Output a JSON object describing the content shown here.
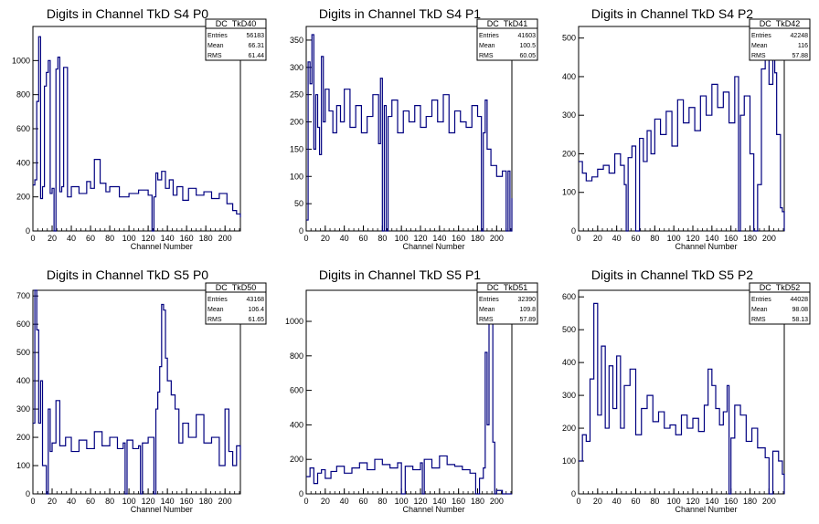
{
  "colors": {
    "line": "#000080",
    "axis": "#000000",
    "background": "#ffffff"
  },
  "chart_data": [
    {
      "type": "line",
      "title": "Digits in Channel TkD S4 P0",
      "xlabel": "Channel Number",
      "xlim": [
        0,
        216
      ],
      "ylim": [
        0,
        1200
      ],
      "xticks": [
        0,
        20,
        40,
        60,
        80,
        100,
        120,
        140,
        160,
        180,
        200
      ],
      "yticks": [
        0,
        200,
        400,
        600,
        800,
        1000
      ],
      "stats": {
        "name": "DC_TkD40",
        "entries_label": "Entries",
        "entries": "56183",
        "mean_label": "Mean",
        "mean": "66.31",
        "rms_label": "RMS",
        "rms": "61.44"
      },
      "series": [
        {
          "x": [
            0,
            2,
            4,
            6,
            8,
            10,
            12,
            14,
            16,
            18,
            20,
            22,
            24,
            26,
            28,
            30,
            32,
            36,
            40,
            48,
            56,
            60,
            64,
            70,
            76,
            80,
            90,
            100,
            110,
            120,
            124,
            126,
            128,
            130,
            134,
            138,
            142,
            146,
            150,
            156,
            162,
            170,
            178,
            186,
            194,
            202,
            208,
            212,
            216
          ],
          "values": [
            270,
            300,
            760,
            1140,
            190,
            260,
            850,
            930,
            1000,
            220,
            250,
            0,
            950,
            1020,
            230,
            260,
            960,
            200,
            260,
            220,
            290,
            250,
            420,
            280,
            230,
            260,
            200,
            220,
            240,
            210,
            0,
            200,
            340,
            300,
            350,
            250,
            300,
            210,
            260,
            180,
            250,
            210,
            230,
            190,
            220,
            160,
            120,
            100,
            80
          ]
        }
      ]
    },
    {
      "type": "line",
      "title": "Digits in Channel TkD S4 P1",
      "xlabel": "Channel Number",
      "xlim": [
        0,
        216
      ],
      "ylim": [
        0,
        375
      ],
      "xticks": [
        0,
        20,
        40,
        60,
        80,
        100,
        120,
        140,
        160,
        180,
        200
      ],
      "yticks": [
        0,
        50,
        100,
        150,
        200,
        250,
        300,
        350
      ],
      "stats": {
        "name": "DC_TkD41",
        "entries_label": "Entries",
        "entries": "41603",
        "mean_label": "Mean",
        "mean": "100.5",
        "rms_label": "RMS",
        "rms": "60.05"
      },
      "series": [
        {
          "x": [
            0,
            2,
            4,
            6,
            8,
            10,
            12,
            14,
            16,
            18,
            20,
            24,
            28,
            32,
            36,
            40,
            46,
            52,
            58,
            64,
            70,
            76,
            78,
            80,
            82,
            84,
            86,
            90,
            96,
            102,
            108,
            114,
            120,
            126,
            132,
            138,
            144,
            150,
            156,
            162,
            168,
            174,
            180,
            184,
            186,
            188,
            190,
            194,
            200,
            206,
            210,
            212,
            214,
            216
          ],
          "values": [
            20,
            310,
            270,
            360,
            150,
            250,
            190,
            140,
            320,
            200,
            260,
            220,
            180,
            230,
            200,
            260,
            190,
            230,
            180,
            210,
            250,
            160,
            280,
            0,
            230,
            0,
            210,
            240,
            180,
            220,
            200,
            230,
            190,
            210,
            240,
            200,
            250,
            180,
            220,
            200,
            190,
            230,
            210,
            0,
            180,
            240,
            150,
            120,
            100,
            110,
            0,
            110,
            0,
            60
          ]
        }
      ]
    },
    {
      "type": "line",
      "title": "Digits in Channel TkD S4 P2",
      "xlabel": "Channel Number",
      "xlim": [
        0,
        216
      ],
      "ylim": [
        0,
        530
      ],
      "xticks": [
        0,
        20,
        40,
        60,
        80,
        100,
        120,
        140,
        160,
        180,
        200
      ],
      "yticks": [
        0,
        100,
        200,
        300,
        400,
        500
      ],
      "stats": {
        "name": "DC_TkD42",
        "entries_label": "Entries",
        "entries": "42248",
        "mean_label": "Mean",
        "mean": "116",
        "rms_label": "RMS",
        "rms": "57.88"
      },
      "series": [
        {
          "x": [
            0,
            4,
            8,
            14,
            20,
            26,
            32,
            38,
            44,
            48,
            50,
            52,
            56,
            60,
            64,
            68,
            72,
            76,
            80,
            86,
            92,
            98,
            104,
            110,
            116,
            122,
            128,
            134,
            140,
            146,
            152,
            158,
            164,
            168,
            170,
            174,
            180,
            184,
            188,
            192,
            196,
            200,
            204,
            206,
            208,
            212,
            214,
            216
          ],
          "values": [
            180,
            150,
            130,
            140,
            160,
            170,
            150,
            200,
            170,
            120,
            0,
            190,
            220,
            0,
            240,
            180,
            260,
            200,
            290,
            250,
            310,
            220,
            340,
            280,
            320,
            260,
            350,
            300,
            380,
            320,
            360,
            280,
            400,
            0,
            300,
            350,
            200,
            0,
            120,
            420,
            490,
            380,
            500,
            410,
            250,
            60,
            50,
            0
          ]
        }
      ]
    },
    {
      "type": "line",
      "title": "Digits in Channel TkD S5 P0",
      "xlabel": "Channel Number",
      "xlim": [
        0,
        216
      ],
      "ylim": [
        0,
        720
      ],
      "xticks": [
        0,
        20,
        40,
        60,
        80,
        100,
        120,
        140,
        160,
        180,
        200
      ],
      "yticks": [
        0,
        100,
        200,
        300,
        400,
        500,
        600,
        700
      ],
      "stats": {
        "name": "DC_TkD50",
        "entries_label": "Entries",
        "entries": "43168",
        "mean_label": "Mean",
        "mean": "106.4",
        "rms_label": "RMS",
        "rms": "61.65"
      },
      "series": [
        {
          "x": [
            0,
            2,
            4,
            6,
            8,
            10,
            14,
            16,
            18,
            20,
            24,
            28,
            34,
            40,
            48,
            56,
            64,
            72,
            80,
            88,
            94,
            96,
            98,
            104,
            110,
            112,
            114,
            120,
            126,
            128,
            130,
            132,
            134,
            136,
            138,
            140,
            144,
            148,
            152,
            156,
            162,
            170,
            178,
            186,
            194,
            200,
            204,
            208,
            212,
            216
          ],
          "values": [
            250,
            720,
            580,
            250,
            400,
            100,
            0,
            300,
            150,
            180,
            330,
            170,
            200,
            150,
            190,
            160,
            220,
            170,
            200,
            160,
            180,
            0,
            190,
            160,
            170,
            0,
            180,
            200,
            0,
            300,
            360,
            450,
            670,
            650,
            480,
            400,
            350,
            300,
            180,
            250,
            200,
            280,
            180,
            200,
            100,
            300,
            150,
            100,
            170,
            120
          ]
        }
      ]
    },
    {
      "type": "line",
      "title": "Digits in Channel TkD S5 P1",
      "xlabel": "Channel Number",
      "xlim": [
        0,
        216
      ],
      "ylim": [
        0,
        1180
      ],
      "xticks": [
        0,
        20,
        40,
        60,
        80,
        100,
        120,
        140,
        160,
        180,
        200
      ],
      "yticks": [
        0,
        200,
        400,
        600,
        800,
        1000
      ],
      "stats": {
        "name": "DC_TkD51",
        "entries_label": "Entries",
        "entries": "32390",
        "mean_label": "Mean",
        "mean": "109.8",
        "rms_label": "RMS",
        "rms": "57.89"
      },
      "series": [
        {
          "x": [
            0,
            4,
            8,
            12,
            16,
            20,
            26,
            32,
            40,
            48,
            56,
            64,
            72,
            80,
            88,
            96,
            100,
            104,
            112,
            120,
            122,
            124,
            132,
            140,
            148,
            156,
            164,
            172,
            178,
            182,
            186,
            188,
            190,
            192,
            194,
            196,
            198,
            200,
            206,
            216
          ],
          "values": [
            100,
            150,
            60,
            120,
            140,
            90,
            130,
            160,
            120,
            150,
            180,
            140,
            200,
            170,
            150,
            180,
            0,
            160,
            140,
            180,
            0,
            200,
            150,
            220,
            170,
            160,
            140,
            120,
            0,
            90,
            150,
            820,
            400,
            1000,
            1180,
            300,
            0,
            20,
            0,
            0
          ]
        }
      ]
    },
    {
      "type": "line",
      "title": "Digits in Channel TkD S5 P2",
      "xlabel": "Channel Number",
      "xlim": [
        0,
        216
      ],
      "ylim": [
        0,
        620
      ],
      "xticks": [
        0,
        20,
        40,
        60,
        80,
        100,
        120,
        140,
        160,
        180,
        200
      ],
      "yticks": [
        0,
        100,
        200,
        300,
        400,
        500,
        600
      ],
      "stats": {
        "name": "DC_TkD52",
        "entries_label": "Entries",
        "entries": "44028",
        "mean_label": "Mean",
        "mean": "98.08",
        "rms_label": "RMS",
        "rms": "58.13"
      },
      "series": [
        {
          "x": [
            0,
            4,
            8,
            12,
            16,
            20,
            24,
            28,
            32,
            36,
            40,
            44,
            48,
            54,
            60,
            66,
            72,
            78,
            84,
            90,
            96,
            102,
            108,
            114,
            120,
            126,
            132,
            136,
            140,
            144,
            148,
            152,
            156,
            158,
            160,
            164,
            170,
            176,
            182,
            188,
            196,
            200,
            204,
            210,
            214,
            216
          ],
          "values": [
            100,
            180,
            160,
            350,
            580,
            240,
            450,
            200,
            390,
            260,
            420,
            200,
            330,
            380,
            180,
            260,
            300,
            220,
            250,
            200,
            210,
            180,
            240,
            200,
            230,
            190,
            270,
            380,
            330,
            260,
            210,
            250,
            330,
            0,
            170,
            270,
            240,
            160,
            200,
            140,
            110,
            0,
            130,
            100,
            60,
            0
          ]
        }
      ]
    }
  ]
}
